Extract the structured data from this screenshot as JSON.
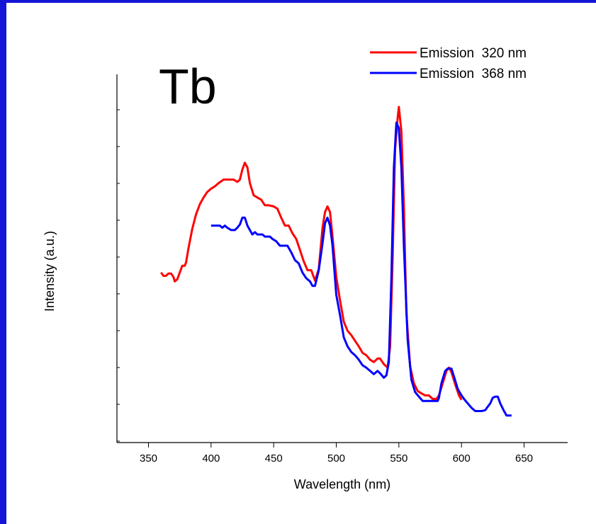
{
  "chart_data": {
    "type": "line",
    "title": "Tb",
    "xlabel": "Wavelength (nm)",
    "ylabel": "Intensity (a.u.)",
    "xlim": [
      325,
      675
    ],
    "ylim": [
      0,
      100
    ],
    "x_ticks": [
      350,
      400,
      450,
      500,
      550,
      600,
      650
    ],
    "y_ticks_labeled": false,
    "grid": false,
    "legend_position": "top-right",
    "series": [
      {
        "name": "Emission  320 nm",
        "color": "#ff0000",
        "points": [
          [
            360,
            43.9
          ],
          [
            362,
            42.8
          ],
          [
            364,
            42.8
          ],
          [
            366,
            43.6
          ],
          [
            368,
            43.6
          ],
          [
            370,
            42.4
          ],
          [
            371,
            40.9
          ],
          [
            373,
            41.6
          ],
          [
            375,
            43.9
          ],
          [
            377,
            46.2
          ],
          [
            379,
            46.2
          ],
          [
            380,
            47.3
          ],
          [
            382,
            52.2
          ],
          [
            385,
            58.7
          ],
          [
            388,
            63.6
          ],
          [
            391,
            67.0
          ],
          [
            394,
            69.3
          ],
          [
            397,
            71.2
          ],
          [
            400,
            72.3
          ],
          [
            403,
            73.1
          ],
          [
            406,
            74.2
          ],
          [
            410,
            75.4
          ],
          [
            414,
            75.4
          ],
          [
            418,
            75.4
          ],
          [
            421,
            74.6
          ],
          [
            423,
            75.4
          ],
          [
            425,
            78.8
          ],
          [
            427,
            81.1
          ],
          [
            429,
            79.5
          ],
          [
            431,
            74.2
          ],
          [
            434,
            70.1
          ],
          [
            437,
            69.3
          ],
          [
            440,
            68.6
          ],
          [
            443,
            66.7
          ],
          [
            446,
            66.7
          ],
          [
            450,
            66.3
          ],
          [
            453,
            65.5
          ],
          [
            456,
            62.5
          ],
          [
            459,
            59.8
          ],
          [
            462,
            59.8
          ],
          [
            465,
            57.2
          ],
          [
            468,
            55.3
          ],
          [
            471,
            51.5
          ],
          [
            474,
            47.7
          ],
          [
            477,
            44.7
          ],
          [
            480,
            44.7
          ],
          [
            483,
            41.2
          ],
          [
            486,
            45.1
          ],
          [
            489,
            59.1
          ],
          [
            491,
            64.4
          ],
          [
            493,
            66.3
          ],
          [
            495,
            64.4
          ],
          [
            497,
            56.1
          ],
          [
            500,
            42.4
          ],
          [
            503,
            34.5
          ],
          [
            506,
            27.3
          ],
          [
            509,
            24.2
          ],
          [
            512,
            22.7
          ],
          [
            515,
            20.8
          ],
          [
            518,
            18.9
          ],
          [
            521,
            16.7
          ],
          [
            524,
            15.9
          ],
          [
            527,
            14.4
          ],
          [
            530,
            13.6
          ],
          [
            533,
            14.8
          ],
          [
            535,
            14.8
          ],
          [
            538,
            12.9
          ],
          [
            541,
            11.7
          ],
          [
            543,
            18.9
          ],
          [
            545,
            48.5
          ],
          [
            547,
            85.6
          ],
          [
            549,
            96.2
          ],
          [
            550,
            100.0
          ],
          [
            552,
            91.7
          ],
          [
            554,
            66.3
          ],
          [
            556,
            30.3
          ],
          [
            559,
            12.1
          ],
          [
            562,
            6.4
          ],
          [
            565,
            3.8
          ],
          [
            568,
            3.0
          ],
          [
            571,
            2.3
          ],
          [
            574,
            2.3
          ],
          [
            577,
            1.1
          ],
          [
            580,
            1.1
          ],
          [
            582,
            2.3
          ],
          [
            585,
            6.4
          ],
          [
            588,
            10.6
          ],
          [
            590,
            11.7
          ],
          [
            592,
            10.2
          ],
          [
            595,
            6.1
          ],
          [
            598,
            2.3
          ],
          [
            600,
            0.8
          ]
        ]
      },
      {
        "name": "Emission  368 nm",
        "color": "#0000ff",
        "points": [
          [
            400,
            59.8
          ],
          [
            404,
            59.8
          ],
          [
            407,
            59.8
          ],
          [
            409,
            59.1
          ],
          [
            411,
            59.8
          ],
          [
            413,
            59.1
          ],
          [
            416,
            58.3
          ],
          [
            419,
            58.3
          ],
          [
            421,
            59.1
          ],
          [
            423,
            60.2
          ],
          [
            425,
            62.5
          ],
          [
            427,
            62.5
          ],
          [
            429,
            59.8
          ],
          [
            431,
            58.3
          ],
          [
            433,
            56.8
          ],
          [
            435,
            57.6
          ],
          [
            437,
            56.8
          ],
          [
            441,
            56.8
          ],
          [
            443,
            56.1
          ],
          [
            447,
            56.1
          ],
          [
            449,
            55.3
          ],
          [
            452,
            54.5
          ],
          [
            455,
            53.0
          ],
          [
            458,
            53.0
          ],
          [
            461,
            53.0
          ],
          [
            464,
            50.8
          ],
          [
            467,
            48.1
          ],
          [
            470,
            47.0
          ],
          [
            473,
            43.9
          ],
          [
            476,
            42.0
          ],
          [
            479,
            40.9
          ],
          [
            481,
            39.4
          ],
          [
            483,
            39.4
          ],
          [
            486,
            44.7
          ],
          [
            489,
            53.8
          ],
          [
            491,
            60.6
          ],
          [
            493,
            62.5
          ],
          [
            495,
            59.8
          ],
          [
            497,
            53.0
          ],
          [
            500,
            36.4
          ],
          [
            503,
            29.5
          ],
          [
            506,
            22.0
          ],
          [
            509,
            18.9
          ],
          [
            512,
            17.0
          ],
          [
            515,
            15.9
          ],
          [
            518,
            14.4
          ],
          [
            521,
            12.5
          ],
          [
            524,
            11.7
          ],
          [
            527,
            10.6
          ],
          [
            530,
            9.5
          ],
          [
            533,
            10.6
          ],
          [
            535,
            9.8
          ],
          [
            538,
            8.3
          ],
          [
            540,
            9.1
          ],
          [
            542,
            13.6
          ],
          [
            544,
            41.2
          ],
          [
            546,
            79.5
          ],
          [
            548,
            94.7
          ],
          [
            550,
            92.8
          ],
          [
            552,
            79.5
          ],
          [
            554,
            53.0
          ],
          [
            557,
            21.2
          ],
          [
            560,
            7.6
          ],
          [
            563,
            3.4
          ],
          [
            566,
            1.9
          ],
          [
            569,
            0.4
          ],
          [
            572,
            0.4
          ],
          [
            575,
            0.4
          ],
          [
            578,
            0.4
          ],
          [
            581,
            0.4
          ],
          [
            582,
            1.5
          ],
          [
            584,
            6.4
          ],
          [
            587,
            10.6
          ],
          [
            589,
            11.4
          ],
          [
            592,
            11.4
          ],
          [
            594,
            8.7
          ],
          [
            597,
            4.5
          ],
          [
            600,
            2.3
          ],
          [
            602,
            1.1
          ],
          [
            605,
            -0.4
          ],
          [
            608,
            -1.9
          ],
          [
            611,
            -3.0
          ],
          [
            614,
            -3.0
          ],
          [
            616,
            -3.0
          ],
          [
            619,
            -2.7
          ],
          [
            621,
            -1.5
          ],
          [
            623,
            -0.4
          ],
          [
            625,
            1.5
          ],
          [
            627,
            1.9
          ],
          [
            629,
            1.9
          ],
          [
            631,
            -0.4
          ],
          [
            634,
            -3.0
          ],
          [
            636,
            -4.5
          ],
          [
            638,
            -4.5
          ],
          [
            640,
            -4.5
          ]
        ]
      }
    ]
  }
}
